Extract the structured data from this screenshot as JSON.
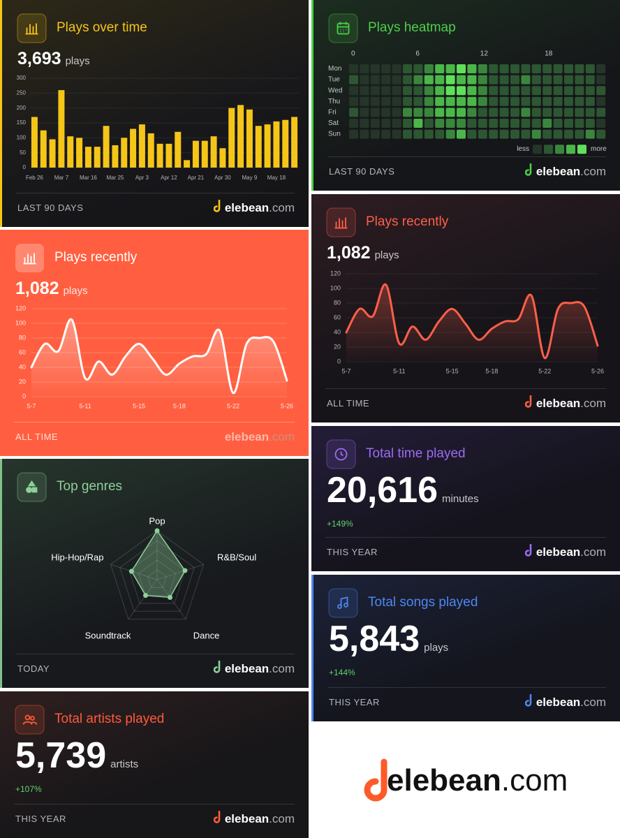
{
  "brand": {
    "name": "elebean",
    "tld": ".com"
  },
  "cards": [
    {
      "title": "Plays over time",
      "value": "3,693",
      "unit": "plays",
      "footer": "LAST 90 DAYS",
      "accent": "#f5c518",
      "chart": {
        "type": "bar",
        "color": "#f5c518",
        "categories": [
          "Feb 26",
          null,
          null,
          "Mar 7",
          null,
          null,
          "Mar 16",
          null,
          null,
          "Mar 25",
          null,
          null,
          "Apr 3",
          null,
          null,
          "Apr 12",
          null,
          null,
          "Apr 21",
          null,
          null,
          "Apr 30",
          null,
          null,
          "May 9",
          null,
          null,
          "May 18",
          null,
          null
        ],
        "values": [
          170,
          125,
          95,
          260,
          105,
          100,
          70,
          70,
          140,
          75,
          100,
          130,
          145,
          115,
          80,
          80,
          120,
          25,
          90,
          90,
          105,
          65,
          200,
          210,
          195,
          140,
          145,
          155,
          160,
          170
        ],
        "ylim": [
          0,
          300
        ],
        "yticks": [
          0,
          50,
          100,
          150,
          200,
          250,
          300
        ],
        "grid": true
      }
    },
    {
      "title": "Plays recently",
      "value": "1,082",
      "unit": "plays",
      "footer": "ALL TIME",
      "accent": "#ffffff",
      "chart": {
        "type": "line",
        "color": "#ffffff",
        "x": [
          "5-7",
          null,
          null,
          null,
          "5-11",
          null,
          null,
          null,
          "5-15",
          null,
          null,
          "5-18",
          null,
          null,
          null,
          "5-22",
          null,
          null,
          null,
          "5-26"
        ],
        "values": [
          40,
          72,
          62,
          105,
          25,
          48,
          30,
          55,
          72,
          52,
          30,
          45,
          55,
          58,
          90,
          5,
          72,
          80,
          75,
          22
        ],
        "ylim": [
          0,
          120
        ],
        "yticks": [
          0,
          20,
          40,
          60,
          80,
          100,
          120
        ],
        "grid": true
      }
    },
    {
      "title": "Top genres",
      "footer": "TODAY",
      "accent": "#8fcf98",
      "chart": {
        "type": "radar",
        "color": "#8fcf98",
        "categories": [
          "Pop",
          "R&B/Soul",
          "Dance",
          "Soundtrack",
          "Hip-Hop/Rap"
        ],
        "values": [
          100,
          60,
          45,
          40,
          55
        ],
        "rlim": [
          0,
          100
        ],
        "rticks": [
          20,
          40,
          60,
          80,
          100
        ],
        "grid": true
      }
    },
    {
      "title": "Total artists played",
      "value": "5,739",
      "unit": "artists",
      "change": "+107%",
      "footer": "THIS YEAR",
      "accent": "#ff5a3c"
    },
    {
      "title": "Plays heatmap",
      "footer": "LAST 90 DAYS",
      "accent": "#4cd04a",
      "chart": {
        "type": "heatmap",
        "rows": [
          "Mon",
          "Tue",
          "Wed",
          "Thu",
          "Fri",
          "Sat",
          "Sun"
        ],
        "xticks": [
          0,
          6,
          12,
          18
        ],
        "vlim": [
          0,
          4
        ],
        "scale_colors": [
          "#263529",
          "#2d5633",
          "#3a863d",
          "#4bb749",
          "#60e05a"
        ],
        "legend_low": "less",
        "legend_high": "more",
        "values": [
          [
            0,
            0,
            0,
            0,
            0,
            1,
            1,
            2,
            3,
            3,
            4,
            3,
            2,
            1,
            1,
            1,
            1,
            1,
            1,
            1,
            1,
            1,
            1,
            0
          ],
          [
            1,
            0,
            0,
            0,
            0,
            1,
            2,
            3,
            3,
            4,
            3,
            3,
            2,
            1,
            1,
            1,
            2,
            1,
            1,
            1,
            1,
            1,
            1,
            0
          ],
          [
            0,
            0,
            0,
            0,
            0,
            1,
            1,
            2,
            3,
            4,
            4,
            3,
            2,
            1,
            1,
            1,
            1,
            1,
            1,
            1,
            1,
            1,
            1,
            1
          ],
          [
            0,
            0,
            0,
            0,
            0,
            1,
            1,
            2,
            3,
            3,
            3,
            3,
            2,
            1,
            1,
            1,
            1,
            1,
            1,
            1,
            1,
            1,
            1,
            0
          ],
          [
            1,
            0,
            0,
            0,
            0,
            2,
            2,
            2,
            3,
            3,
            3,
            2,
            1,
            1,
            1,
            1,
            2,
            1,
            1,
            1,
            1,
            1,
            1,
            1
          ],
          [
            0,
            0,
            0,
            0,
            0,
            1,
            3,
            1,
            2,
            2,
            2,
            1,
            1,
            1,
            1,
            1,
            1,
            1,
            2,
            1,
            1,
            1,
            1,
            0
          ],
          [
            0,
            0,
            0,
            0,
            0,
            1,
            1,
            1,
            1,
            2,
            3,
            1,
            1,
            1,
            1,
            1,
            1,
            2,
            1,
            1,
            1,
            1,
            2,
            1
          ]
        ]
      }
    },
    {
      "title": "Plays recently",
      "value": "1,082",
      "unit": "plays",
      "footer": "ALL TIME",
      "accent": "#ff5f4a",
      "chart": {
        "type": "line",
        "color": "#ff5f4a",
        "x": [
          "5-7",
          null,
          null,
          null,
          "5-11",
          null,
          null,
          null,
          "5-15",
          null,
          null,
          "5-18",
          null,
          null,
          null,
          "5-22",
          null,
          null,
          null,
          "5-26"
        ],
        "values": [
          40,
          72,
          62,
          105,
          25,
          48,
          30,
          55,
          72,
          52,
          30,
          45,
          55,
          58,
          90,
          5,
          72,
          80,
          75,
          22
        ],
        "ylim": [
          0,
          120
        ],
        "yticks": [
          0,
          20,
          40,
          60,
          80,
          100,
          120
        ],
        "grid": true
      }
    },
    {
      "title": "Total time played",
      "value": "20,616",
      "unit": "minutes",
      "change": "+149%",
      "footer": "THIS YEAR",
      "accent": "#9b6cf0"
    },
    {
      "title": "Total songs played",
      "value": "5,843",
      "unit": "plays",
      "change": "+144%",
      "footer": "THIS YEAR",
      "accent": "#4f86f0"
    }
  ]
}
